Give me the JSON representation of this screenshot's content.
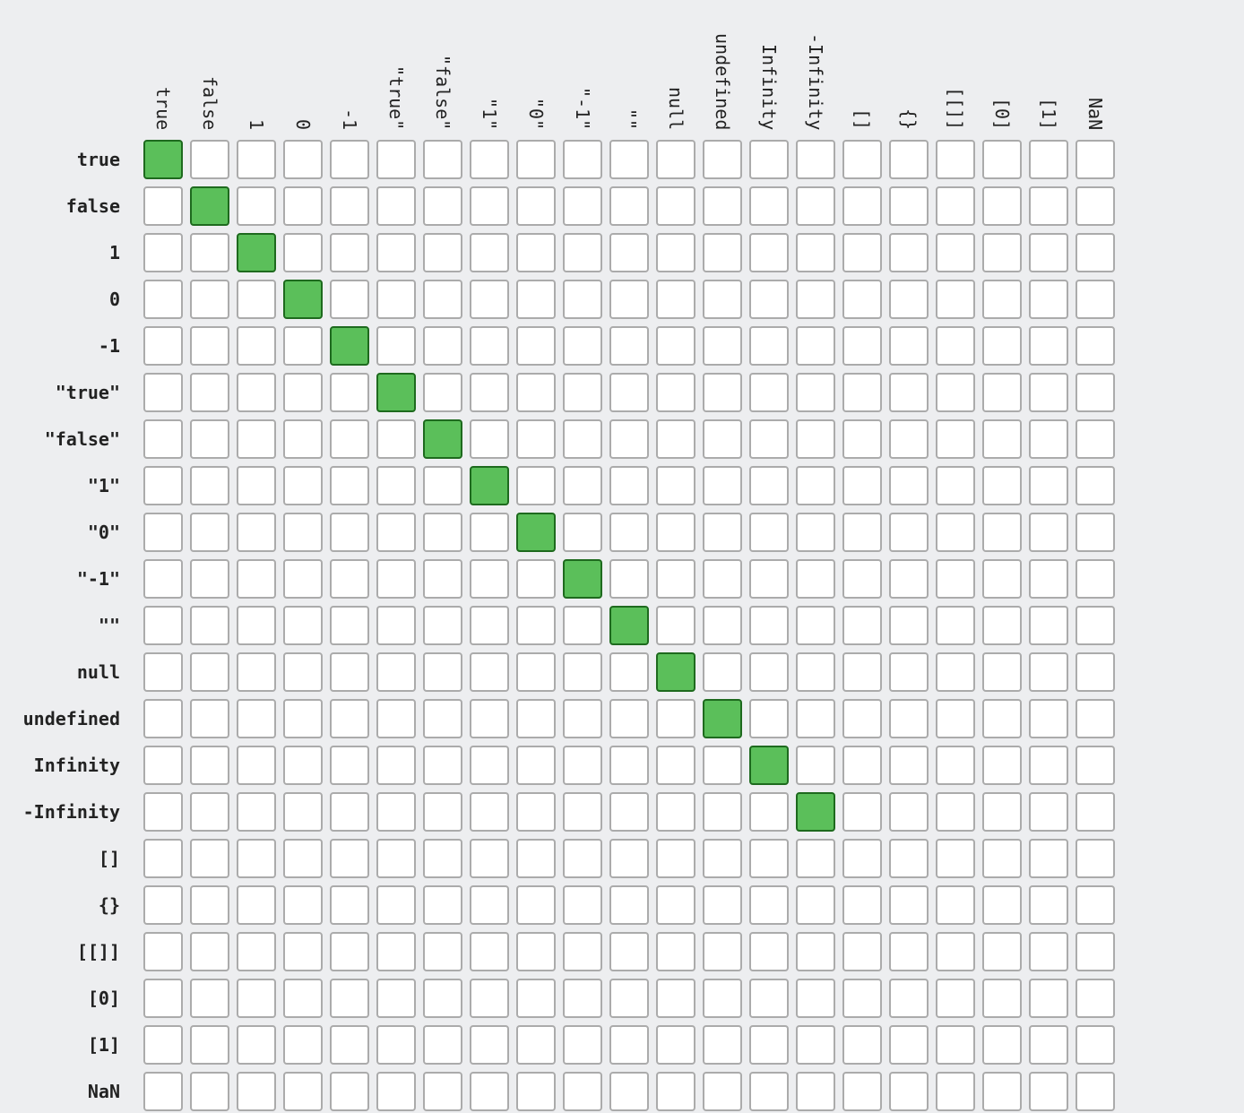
{
  "chart_data": {
    "type": "heatmap",
    "rows": [
      "true",
      "false",
      "1",
      "0",
      "-1",
      "\"true\"",
      "\"false\"",
      "\"1\"",
      "\"0\"",
      "\"-1\"",
      "\"\"",
      "null",
      "undefined",
      "Infinity",
      "-Infinity",
      "[]",
      "{}",
      "[[]]",
      "[0]",
      "[1]",
      "NaN"
    ],
    "columns": [
      "true",
      "false",
      "1",
      "0",
      "-1",
      "\"true\"",
      "\"false\"",
      "\"1\"",
      "\"0\"",
      "\"-1\"",
      "\"\"",
      "null",
      "undefined",
      "Infinity",
      "-Infinity",
      "[]",
      "{}",
      "[[]]",
      "[0]",
      "[1]",
      "NaN"
    ],
    "equal_pairs": [
      [
        "true",
        "true"
      ],
      [
        "false",
        "false"
      ],
      [
        "1",
        "1"
      ],
      [
        "0",
        "0"
      ],
      [
        "-1",
        "-1"
      ],
      [
        "\"true\"",
        "\"true\""
      ],
      [
        "\"false\"",
        "\"false\""
      ],
      [
        "\"1\"",
        "\"1\""
      ],
      [
        "\"0\"",
        "\"0\""
      ],
      [
        "\"-1\"",
        "\"-1\""
      ],
      [
        "\"\"",
        "\"\""
      ],
      [
        "null",
        "null"
      ],
      [
        "undefined",
        "undefined"
      ],
      [
        "Infinity",
        "Infinity"
      ],
      [
        "-Infinity",
        "-Infinity"
      ]
    ]
  },
  "colors": {
    "background": "#edeef0",
    "cell_fill": "#ffffff",
    "cell_border": "#ababab",
    "equal_fill": "#5bbf5a",
    "equal_border": "#1e6a1e"
  }
}
